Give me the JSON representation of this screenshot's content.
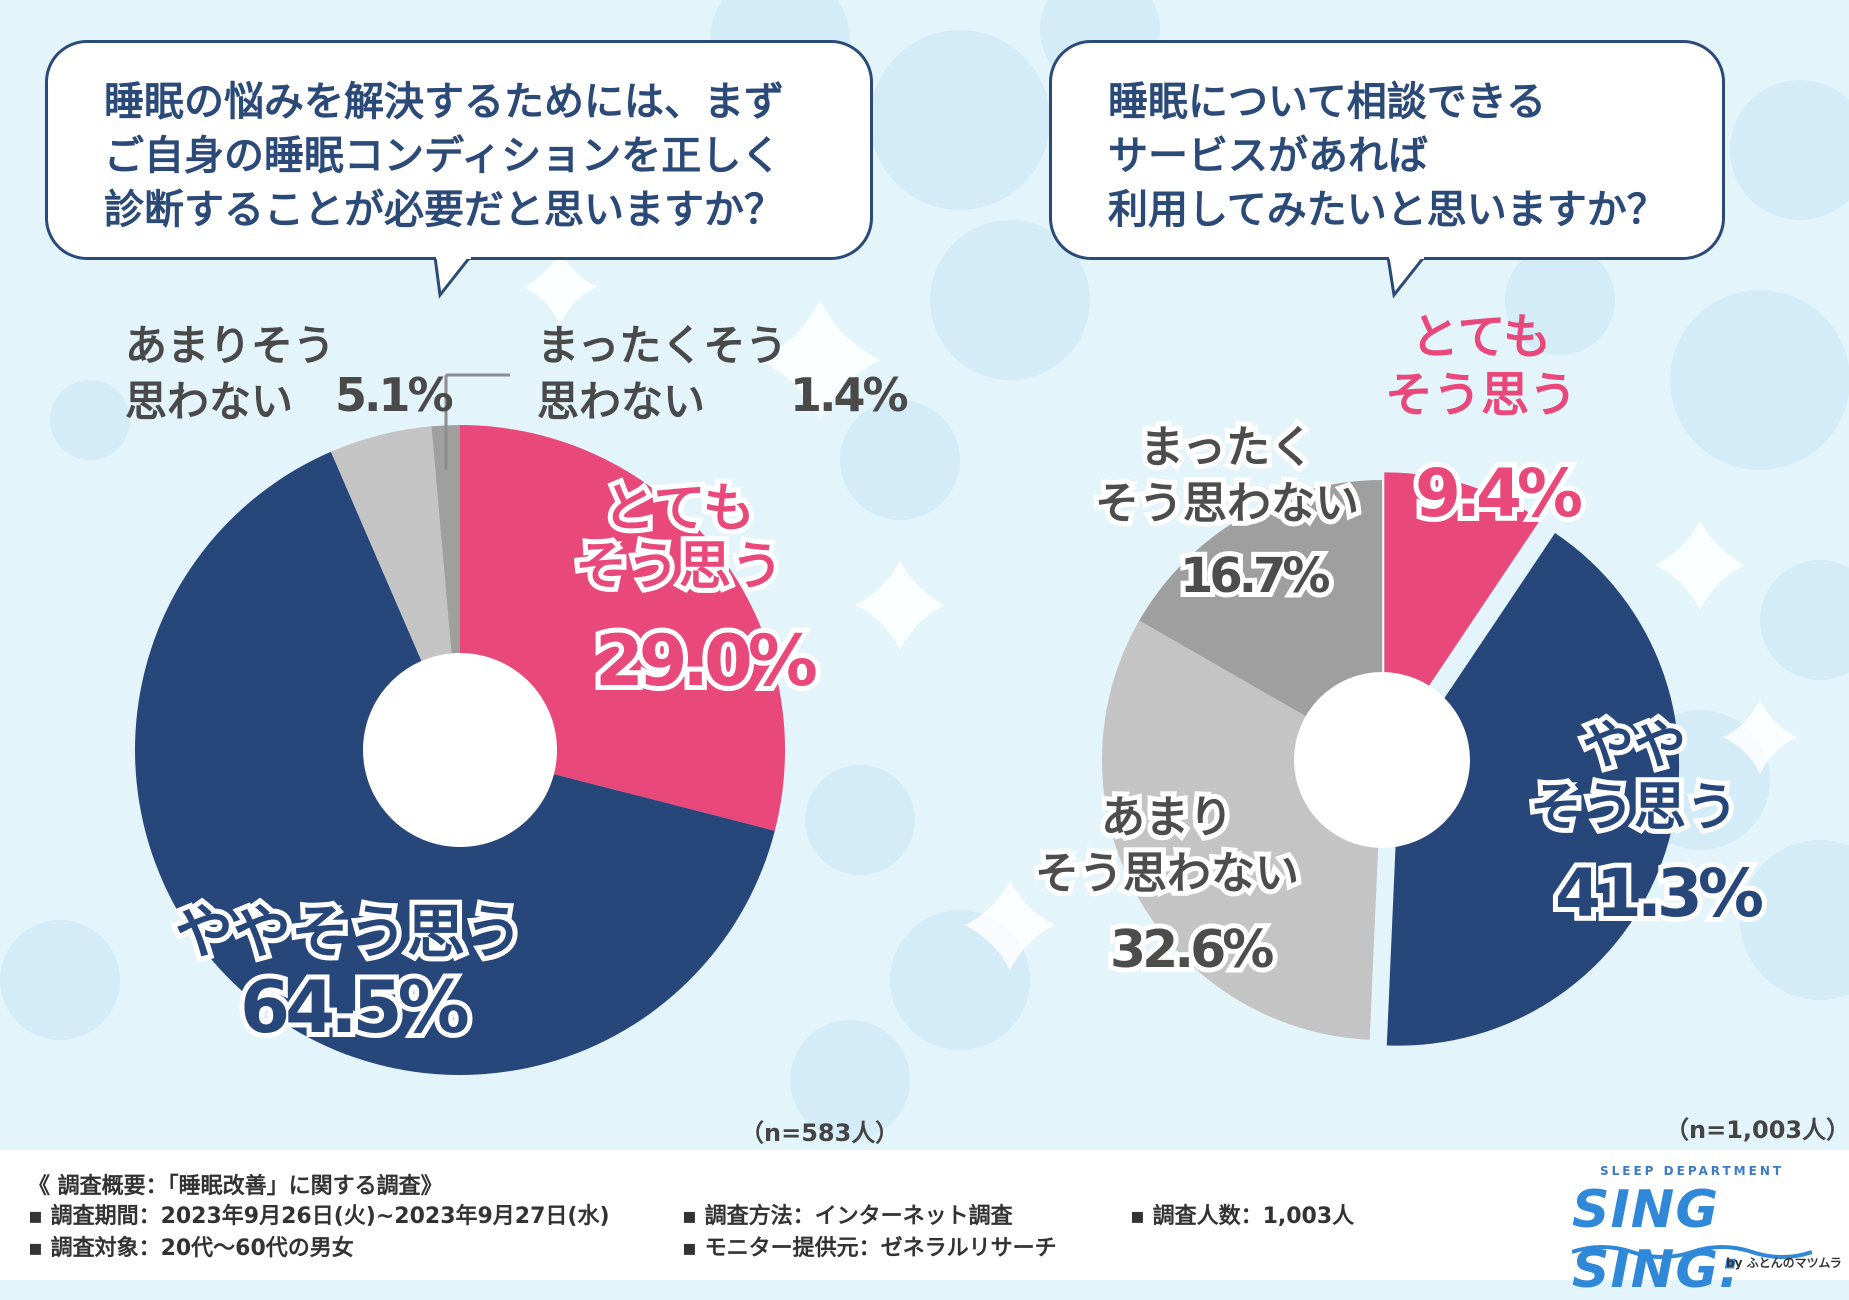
{
  "colors": {
    "pink": "#e8497a",
    "navy": "#27467a",
    "grey_light": "#c4c4c4",
    "grey_mid": "#9f9f9f",
    "grey_dark": "#7e7e7e",
    "background": "#e4f4fb"
  },
  "chart_data": [
    {
      "type": "pie",
      "title": "睡眠の悩みを解決するためには、まずご自身の睡眠コンディションを正しく診断することが必要だと思いますか？",
      "title_lines": [
        "睡眠の悩みを解決するためには、まず",
        "ご自身の睡眠コンディションを正しく",
        "診断することが必要だと思いますか？"
      ],
      "n_label": "（n=583人）",
      "slices": [
        {
          "label": "とてもそう思う",
          "label_lines": [
            "とても",
            "そう思う"
          ],
          "value": 29.0,
          "value_label": "29.0%",
          "color": "#e8497a"
        },
        {
          "label": "ややそう思う",
          "label_lines": [
            "ややそう思う"
          ],
          "value": 64.5,
          "value_label": "64.5%",
          "color": "#27467a"
        },
        {
          "label": "あまりそう思わない",
          "label_lines": [
            "あまりそう",
            "思わない"
          ],
          "value": 5.1,
          "value_label": "5.1%",
          "color": "#c4c4c4"
        },
        {
          "label": "まったくそう思わない",
          "label_lines": [
            "まったくそう",
            "思わない"
          ],
          "value": 1.4,
          "value_label": "1.4%",
          "color": "#9f9f9f"
        }
      ]
    },
    {
      "type": "pie",
      "title": "睡眠について相談できるサービスがあれば利用してみたいと思いますか？",
      "title_lines": [
        "睡眠について相談できる",
        "サービスがあれば",
        "利用してみたいと思いますか？"
      ],
      "n_label": "（n=1,003人）",
      "slices": [
        {
          "label": "とてもそう思う",
          "label_lines": [
            "とても",
            "そう思う"
          ],
          "value": 9.4,
          "value_label": "9.4%",
          "color": "#e8497a"
        },
        {
          "label": "ややそう思う",
          "label_lines": [
            "やや",
            "そう思う"
          ],
          "value": 41.3,
          "value_label": "41.3%",
          "color": "#27467a"
        },
        {
          "label": "あまりそう思わない",
          "label_lines": [
            "あまり",
            "そう思わない"
          ],
          "value": 32.6,
          "value_label": "32.6%",
          "color": "#c4c4c4"
        },
        {
          "label": "まったくそう思わない",
          "label_lines": [
            "まったく",
            "そう思わない"
          ],
          "value": 16.7,
          "value_label": "16.7%",
          "color": "#9f9f9f"
        }
      ]
    }
  ],
  "footer": {
    "heading": "《 調査概要：「睡眠改善」に関する調査》",
    "period": "▪ 調査期間：2023年9月26日(火)~2023年9月27日(水)",
    "method": "▪ 調査方法：インターネット調査",
    "count": "▪ 調査人数：1,003人",
    "target": "▪ 調査対象：20代～60代の男女",
    "provider": "▪ モニター提供元：ゼネラルリサーチ"
  },
  "logo": {
    "small": "SLEEP DEPARTMENT",
    "main": "SING SING:",
    "by": "by ふとんのマツムラ"
  }
}
